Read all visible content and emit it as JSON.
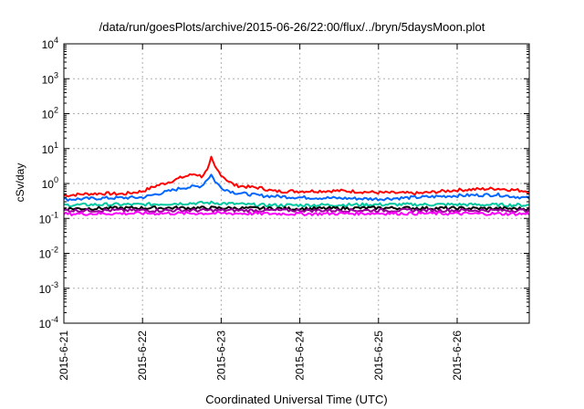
{
  "chart_data": {
    "type": "line",
    "title": "/data/run/goesPlots/archive/2015-06-26/22:00/flux/../bryn/5daysMoon.plot",
    "xlabel": "Coordinated Universal Time (UTC)",
    "ylabel": "cSv/day",
    "y_scale": "log",
    "ylim": [
      0.0001,
      10000
    ],
    "y_ticks": [
      {
        "value": 0.0001,
        "base": "10",
        "exp": "-4"
      },
      {
        "value": 0.001,
        "base": "10",
        "exp": "-3"
      },
      {
        "value": 0.01,
        "base": "10",
        "exp": "-2"
      },
      {
        "value": 0.1,
        "base": "10",
        "exp": "-1"
      },
      {
        "value": 1,
        "base": "10",
        "exp": "0"
      },
      {
        "value": 10,
        "base": "10",
        "exp": "1"
      },
      {
        "value": 100,
        "base": "10",
        "exp": "2"
      },
      {
        "value": 1000,
        "base": "10",
        "exp": "3"
      },
      {
        "value": 10000,
        "base": "10",
        "exp": "4"
      }
    ],
    "xlim": [
      "2015-06-21 00:00",
      "2015-06-26 22:00"
    ],
    "x_ticks": [
      {
        "value": "2015-06-21 00:00",
        "label": "2015-6-21"
      },
      {
        "value": "2015-06-22 00:00",
        "label": "2015-6-22"
      },
      {
        "value": "2015-06-23 00:00",
        "label": "2015-6-23"
      },
      {
        "value": "2015-06-24 00:00",
        "label": "2015-6-24"
      },
      {
        "value": "2015-06-25 00:00",
        "label": "2015-6-25"
      },
      {
        "value": "2015-06-26 00:00",
        "label": "2015-6-26"
      }
    ],
    "grid": true,
    "series": [
      {
        "color": "#ff0000",
        "points": [
          [
            "2015-06-21 00:00",
            0.45
          ],
          [
            "2015-06-21 06:00",
            0.5
          ],
          [
            "2015-06-21 12:00",
            0.52
          ],
          [
            "2015-06-21 18:00",
            0.5
          ],
          [
            "2015-06-22 00:00",
            0.6
          ],
          [
            "2015-06-22 04:00",
            0.85
          ],
          [
            "2015-06-22 08:00",
            1.1
          ],
          [
            "2015-06-22 12:00",
            1.5
          ],
          [
            "2015-06-22 16:00",
            1.9
          ],
          [
            "2015-06-22 18:00",
            1.6
          ],
          [
            "2015-06-22 20:00",
            2.5
          ],
          [
            "2015-06-22 21:00",
            5.5
          ],
          [
            "2015-06-22 22:00",
            3.0
          ],
          [
            "2015-06-23 00:00",
            1.8
          ],
          [
            "2015-06-23 02:00",
            1.2
          ],
          [
            "2015-06-23 04:00",
            0.9
          ],
          [
            "2015-06-23 08:00",
            0.8
          ],
          [
            "2015-06-23 12:00",
            0.75
          ],
          [
            "2015-06-23 16:00",
            0.6
          ],
          [
            "2015-06-24 00:00",
            0.6
          ],
          [
            "2015-06-24 12:00",
            0.62
          ],
          [
            "2015-06-25 00:00",
            0.55
          ],
          [
            "2015-06-25 12:00",
            0.52
          ],
          [
            "2015-06-26 00:00",
            0.65
          ],
          [
            "2015-06-26 12:00",
            0.72
          ],
          [
            "2015-06-26 22:00",
            0.6
          ]
        ]
      },
      {
        "color": "#0066ff",
        "points": [
          [
            "2015-06-21 00:00",
            0.35
          ],
          [
            "2015-06-21 12:00",
            0.38
          ],
          [
            "2015-06-22 00:00",
            0.4
          ],
          [
            "2015-06-22 08:00",
            0.6
          ],
          [
            "2015-06-22 12:00",
            0.75
          ],
          [
            "2015-06-22 18:00",
            0.85
          ],
          [
            "2015-06-22 21:00",
            1.8
          ],
          [
            "2015-06-22 22:00",
            1.2
          ],
          [
            "2015-06-23 00:00",
            0.75
          ],
          [
            "2015-06-23 04:00",
            0.55
          ],
          [
            "2015-06-23 12:00",
            0.45
          ],
          [
            "2015-06-24 00:00",
            0.4
          ],
          [
            "2015-06-25 00:00",
            0.36
          ],
          [
            "2015-06-26 00:00",
            0.45
          ],
          [
            "2015-06-26 12:00",
            0.48
          ],
          [
            "2015-06-26 22:00",
            0.38
          ]
        ]
      },
      {
        "color": "#00c8a0",
        "points": [
          [
            "2015-06-21 00:00",
            0.24
          ],
          [
            "2015-06-21 12:00",
            0.25
          ],
          [
            "2015-06-22 00:00",
            0.25
          ],
          [
            "2015-06-22 12:00",
            0.27
          ],
          [
            "2015-06-22 21:00",
            0.28
          ],
          [
            "2015-06-23 12:00",
            0.24
          ],
          [
            "2015-06-24 00:00",
            0.24
          ],
          [
            "2015-06-25 00:00",
            0.25
          ],
          [
            "2015-06-26 00:00",
            0.25
          ],
          [
            "2015-06-26 22:00",
            0.24
          ]
        ]
      },
      {
        "color": "#000000",
        "points": [
          [
            "2015-06-21 00:00",
            0.19
          ],
          [
            "2015-06-22 00:00",
            0.2
          ],
          [
            "2015-06-22 21:00",
            0.2
          ],
          [
            "2015-06-24 00:00",
            0.19
          ],
          [
            "2015-06-25 00:00",
            0.2
          ],
          [
            "2015-06-26 22:00",
            0.19
          ]
        ]
      },
      {
        "color": "#990099",
        "points": [
          [
            "2015-06-21 00:00",
            0.17
          ],
          [
            "2015-06-22 00:00",
            0.17
          ],
          [
            "2015-06-23 00:00",
            0.17
          ],
          [
            "2015-06-24 00:00",
            0.17
          ],
          [
            "2015-06-25 00:00",
            0.17
          ],
          [
            "2015-06-26 22:00",
            0.17
          ]
        ]
      },
      {
        "color": "#ff00ff",
        "points": [
          [
            "2015-06-21 00:00",
            0.135
          ],
          [
            "2015-06-22 00:00",
            0.14
          ],
          [
            "2015-06-23 00:00",
            0.14
          ],
          [
            "2015-06-24 00:00",
            0.135
          ],
          [
            "2015-06-25 00:00",
            0.14
          ],
          [
            "2015-06-26 22:00",
            0.135
          ]
        ]
      }
    ]
  }
}
